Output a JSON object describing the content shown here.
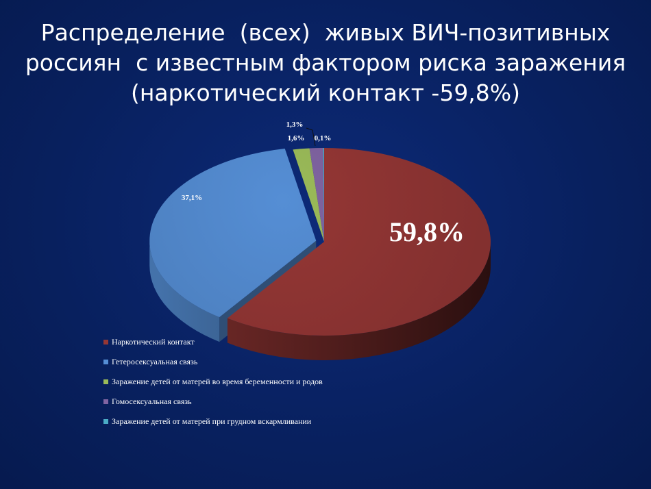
{
  "slide": {
    "title_lines": [
      "Распределение  (всех)  живых ВИЧ-позитивных",
      "россиян  с известным фактором риска заражения",
      "(наркотический контакт -59,8%)"
    ]
  },
  "chart_data": {
    "type": "pie",
    "style": "3d-exploded-pie",
    "slices": [
      {
        "name": "Наркотический контакт",
        "value": 59.8,
        "label": "59,8%",
        "color": "#953735"
      },
      {
        "name": "Гетеросексуальная связь",
        "value": 37.1,
        "label": "37,1%",
        "color": "#558ed5"
      },
      {
        "name": "Заражение детей от матерей во время беременности и родов",
        "value": 1.6,
        "label": "1,6%",
        "color": "#9bbb59"
      },
      {
        "name": "Гомосексуальная связь",
        "value": 1.3,
        "label": "1,3%",
        "color": "#8064a2"
      },
      {
        "name": "Заражение детей от матерей при грудном вскармливании",
        "value": 0.1,
        "label": "0,1%",
        "color": "#4bacc6"
      }
    ],
    "legend_position": "bottom-left"
  }
}
